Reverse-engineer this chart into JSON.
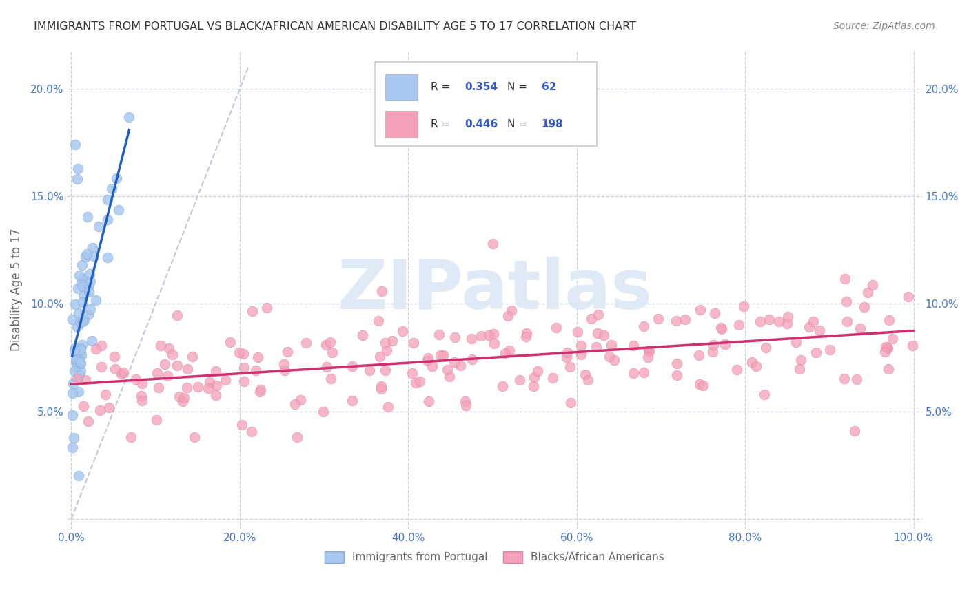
{
  "title": "IMMIGRANTS FROM PORTUGAL VS BLACK/AFRICAN AMERICAN DISABILITY AGE 5 TO 17 CORRELATION CHART",
  "source": "Source: ZipAtlas.com",
  "ylabel": "Disability Age 5 to 17",
  "watermark": "ZIPatlas",
  "legend_blue_R": "0.354",
  "legend_blue_N": "62",
  "legend_pink_R": "0.446",
  "legend_pink_N": "198",
  "blue_color": "#A8C8F0",
  "pink_color": "#F4A0B8",
  "blue_edge_color": "#88AADA",
  "pink_edge_color": "#E080A0",
  "blue_line_color": "#2060C0",
  "pink_line_color": "#D03070",
  "diagonal_color": "#C0C8D8",
  "title_color": "#333333",
  "axis_tick_color": "#4477CC",
  "ylabel_color": "#666666",
  "legend_label_color": "#333333",
  "legend_value_color": "#3355CC",
  "source_color": "#888888",
  "bottom_legend_color": "#666666",
  "xlim": [
    -0.005,
    1.01
  ],
  "ylim": [
    -0.005,
    0.218
  ],
  "xtick_vals": [
    0.0,
    0.2,
    0.4,
    0.6,
    0.8,
    1.0
  ],
  "ytick_vals": [
    0.0,
    0.05,
    0.1,
    0.15,
    0.2
  ],
  "xtick_labels": [
    "0.0%",
    "20.0%",
    "40.0%",
    "60.0%",
    "80.0%",
    "100.0%"
  ],
  "ytick_labels": [
    "",
    "5.0%",
    "10.0%",
    "15.0%",
    "20.0%"
  ]
}
